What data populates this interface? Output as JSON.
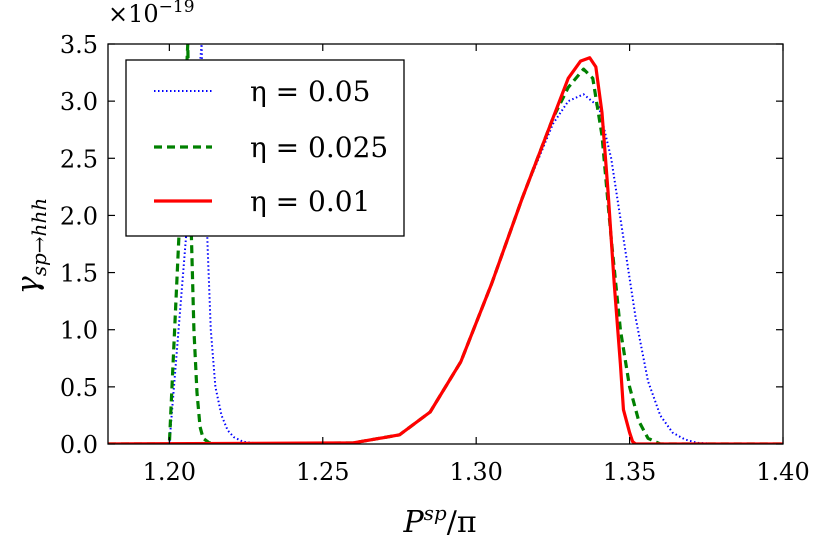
{
  "chart_data": {
    "type": "line",
    "title": "",
    "xlabel": "P^sp/π",
    "xlabel_main": "P",
    "xlabel_sup": "sp",
    "xlabel_tail": "/π",
    "ylabel": "γ_{sp→hhh}",
    "ylabel_main": "γ",
    "ylabel_sub": "sp→hhh",
    "y_multiplier": "×10^-19",
    "y_multiplier_base": "×10",
    "y_multiplier_exp": "−19",
    "xlim": [
      1.18,
      1.4
    ],
    "ylim": [
      0.0,
      3.5
    ],
    "xticks": [
      1.2,
      1.25,
      1.3,
      1.35,
      1.4
    ],
    "xtick_labels": [
      "1.20",
      "1.25",
      "1.30",
      "1.35",
      "1.40"
    ],
    "yticks": [
      0.0,
      0.5,
      1.0,
      1.5,
      2.0,
      2.5,
      3.0,
      3.5
    ],
    "ytick_labels": [
      "0.0",
      "0.5",
      "1.0",
      "1.5",
      "2.0",
      "2.5",
      "3.0",
      "3.5"
    ],
    "legend_position": "top-left",
    "series": [
      {
        "name": "η = 0.05",
        "label": "η = 0.05",
        "color": "#0000ff",
        "style": "dotted",
        "x": [
          1.18,
          1.2,
          1.2105,
          1.2115,
          1.2125,
          1.2135,
          1.215,
          1.217,
          1.219,
          1.221,
          1.224,
          1.23,
          1.26,
          1.275,
          1.285,
          1.295,
          1.305,
          1.315,
          1.325,
          1.33,
          1.335,
          1.34,
          1.344,
          1.348,
          1.352,
          1.356,
          1.36,
          1.364,
          1.368,
          1.372,
          1.38,
          1.4
        ],
        "y": [
          0.0,
          0.0,
          3.5,
          2.5,
          1.7,
          1.0,
          0.5,
          0.25,
          0.12,
          0.06,
          0.02,
          0.0,
          0.01,
          0.08,
          0.28,
          0.72,
          1.4,
          2.15,
          2.8,
          3.0,
          3.06,
          2.95,
          2.5,
          1.8,
          1.1,
          0.55,
          0.25,
          0.1,
          0.04,
          0.01,
          0.0,
          0.0
        ]
      },
      {
        "name": "η = 0.025",
        "label": "η = 0.025",
        "color": "#008000",
        "style": "dashed",
        "x": [
          1.18,
          1.2,
          1.206,
          1.207,
          1.208,
          1.209,
          1.21,
          1.211,
          1.213,
          1.216,
          1.23,
          1.26,
          1.275,
          1.285,
          1.295,
          1.305,
          1.315,
          1.325,
          1.33,
          1.335,
          1.338,
          1.341,
          1.344,
          1.347,
          1.35,
          1.353,
          1.356,
          1.36,
          1.4
        ],
        "y": [
          0.0,
          0.0,
          3.5,
          2.0,
          1.0,
          0.45,
          0.15,
          0.05,
          0.01,
          0.0,
          0.0,
          0.01,
          0.08,
          0.28,
          0.72,
          1.4,
          2.15,
          2.85,
          3.12,
          3.28,
          3.2,
          2.7,
          1.8,
          1.0,
          0.5,
          0.2,
          0.05,
          0.0,
          0.0
        ]
      },
      {
        "name": "η = 0.01",
        "label": "η = 0.01",
        "color": "#ff0000",
        "style": "solid",
        "x": [
          1.18,
          1.26,
          1.275,
          1.285,
          1.295,
          1.305,
          1.315,
          1.325,
          1.33,
          1.334,
          1.337,
          1.339,
          1.341,
          1.343,
          1.345,
          1.347,
          1.348,
          1.35,
          1.351,
          1.352,
          1.4
        ],
        "y": [
          0.0,
          0.01,
          0.08,
          0.28,
          0.72,
          1.4,
          2.15,
          2.85,
          3.2,
          3.35,
          3.38,
          3.3,
          2.9,
          2.2,
          1.4,
          0.7,
          0.3,
          0.1,
          0.02,
          0.0,
          0.0
        ]
      }
    ]
  }
}
